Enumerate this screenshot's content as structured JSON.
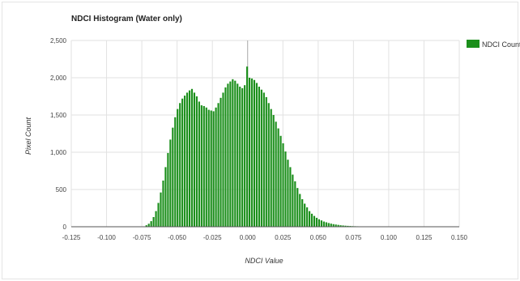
{
  "chart_data": {
    "type": "bar",
    "title": "NDCI Histogram (Water only)",
    "xlabel": "NDCI Value",
    "ylabel": "Pixel Count",
    "xlim": [
      -0.125,
      0.15
    ],
    "ylim": [
      0,
      2500
    ],
    "x_ticks": [
      "-0.125",
      "-0.100",
      "-0.075",
      "-0.050",
      "-0.025",
      "0.000",
      "0.025",
      "0.050",
      "0.075",
      "0.100",
      "0.125",
      "0.150"
    ],
    "y_ticks": [
      "0",
      "500",
      "1,000",
      "1,500",
      "2,000",
      "2,500"
    ],
    "grid": true,
    "legend_position": "right",
    "series": [
      {
        "name": "NDCI Count",
        "color": "#1b8f1b",
        "bin_width": 0.0017,
        "x": [
          -0.0717,
          -0.07,
          -0.0683,
          -0.0666,
          -0.0649,
          -0.0632,
          -0.0615,
          -0.0598,
          -0.0581,
          -0.0564,
          -0.0547,
          -0.053,
          -0.0513,
          -0.0496,
          -0.0479,
          -0.0462,
          -0.0445,
          -0.0428,
          -0.0411,
          -0.0394,
          -0.0377,
          -0.036,
          -0.0343,
          -0.0326,
          -0.0309,
          -0.0292,
          -0.0275,
          -0.0258,
          -0.0241,
          -0.0224,
          -0.0207,
          -0.019,
          -0.0173,
          -0.0156,
          -0.0139,
          -0.0122,
          -0.0105,
          -0.0088,
          -0.0071,
          -0.0054,
          -0.0037,
          -0.002,
          -0.0003,
          0.0014,
          0.0031,
          0.0048,
          0.0065,
          0.0082,
          0.0099,
          0.0116,
          0.0133,
          0.015,
          0.0167,
          0.0184,
          0.0201,
          0.0218,
          0.0235,
          0.0252,
          0.0269,
          0.0286,
          0.0303,
          0.032,
          0.0337,
          0.0354,
          0.0371,
          0.0388,
          0.0405,
          0.0422,
          0.0439,
          0.0456,
          0.0473,
          0.049,
          0.0507,
          0.0524,
          0.0541,
          0.0558,
          0.0575,
          0.0592,
          0.0609,
          0.0626,
          0.0643,
          0.066,
          0.0677,
          0.0694,
          0.0711,
          0.0728,
          0.0745,
          0.0762,
          0.0779,
          0.0796,
          0.0813,
          0.083,
          0.0847,
          0.0864,
          0.0881,
          0.0898
        ],
        "values": [
          20,
          40,
          75,
          130,
          210,
          320,
          460,
          620,
          800,
          990,
          1170,
          1330,
          1470,
          1580,
          1660,
          1720,
          1760,
          1800,
          1830,
          1850,
          1800,
          1750,
          1680,
          1630,
          1620,
          1600,
          1570,
          1560,
          1550,
          1600,
          1660,
          1730,
          1800,
          1870,
          1920,
          1950,
          1980,
          1960,
          1920,
          1880,
          1860,
          1900,
          2150,
          2000,
          1990,
          1970,
          1930,
          1880,
          1840,
          1800,
          1740,
          1660,
          1580,
          1500,
          1410,
          1320,
          1220,
          1120,
          1010,
          900,
          800,
          700,
          610,
          520,
          440,
          370,
          310,
          260,
          210,
          175,
          145,
          120,
          100,
          85,
          70,
          60,
          50,
          42,
          35,
          30,
          25,
          20,
          17,
          14,
          12,
          10,
          8,
          7,
          6,
          5,
          4,
          4,
          3,
          3,
          2,
          2
        ]
      }
    ]
  }
}
